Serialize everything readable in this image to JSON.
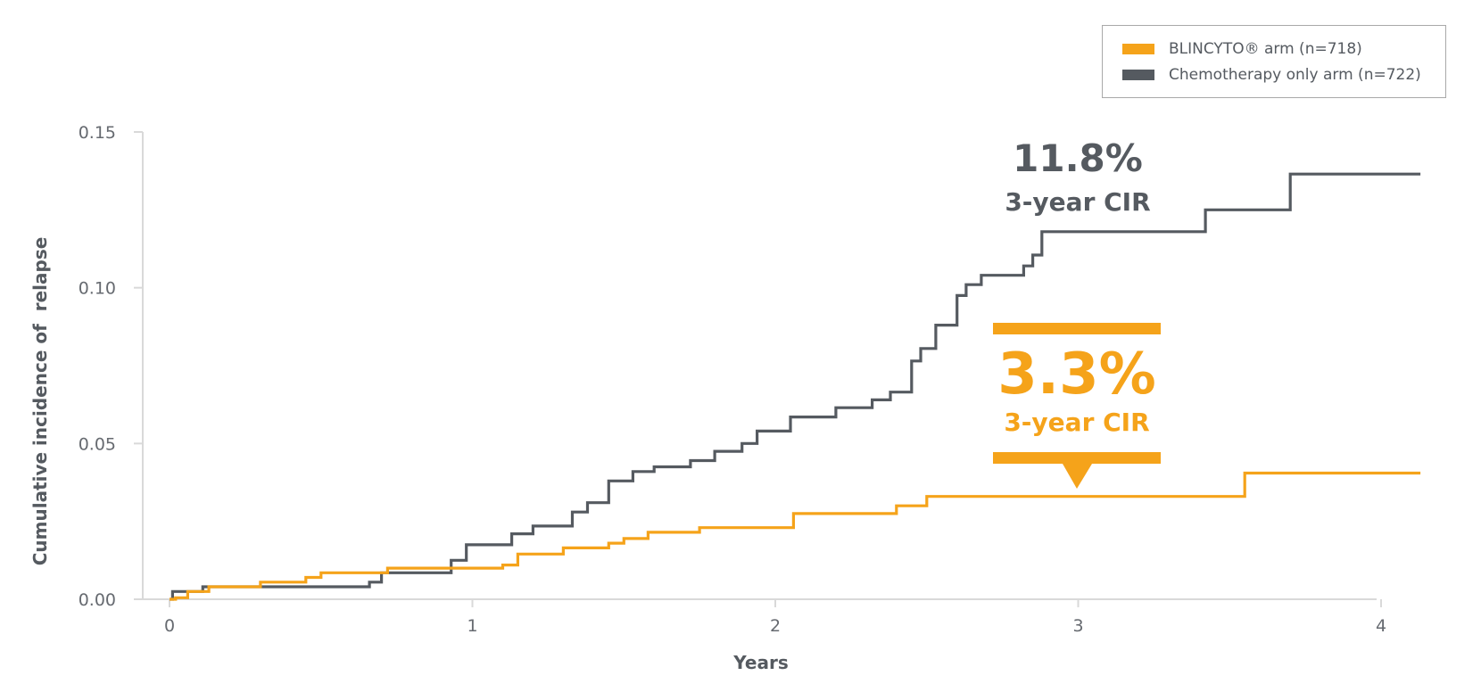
{
  "chart_data": {
    "type": "line",
    "step": true,
    "xlabel": "Years",
    "ylabel": "Cumulative incidence of  relapse",
    "xlim": [
      0,
      4.15
    ],
    "ylim": [
      0,
      0.15
    ],
    "x_ticks": [
      "0",
      "1",
      "2",
      "3",
      "4"
    ],
    "y_ticks": [
      "0.00",
      "0.05",
      "0.10",
      "0.15"
    ],
    "legend": {
      "position": "top-right"
    },
    "series": [
      {
        "name": "BLINCYTO® arm (n=718)",
        "color": "#f5a31a",
        "x": [
          0.0,
          0.02,
          0.06,
          0.13,
          0.3,
          0.45,
          0.5,
          0.72,
          1.1,
          1.15,
          1.3,
          1.45,
          1.5,
          1.58,
          1.75,
          2.06,
          2.4,
          2.5,
          3.0,
          3.55,
          4.13
        ],
        "y": [
          0.0,
          0.0005,
          0.0025,
          0.004,
          0.0055,
          0.007,
          0.0085,
          0.01,
          0.011,
          0.0145,
          0.0165,
          0.018,
          0.0195,
          0.0215,
          0.023,
          0.0275,
          0.03,
          0.033,
          0.033,
          0.0405,
          0.0405
        ]
      },
      {
        "name": "Chemotherapy only arm (n=722)",
        "color": "#555a60",
        "x": [
          0.0,
          0.01,
          0.11,
          0.66,
          0.7,
          0.93,
          0.98,
          1.13,
          1.2,
          1.33,
          1.38,
          1.45,
          1.53,
          1.6,
          1.72,
          1.8,
          1.89,
          1.94,
          2.05,
          2.2,
          2.32,
          2.38,
          2.45,
          2.48,
          2.53,
          2.6,
          2.63,
          2.65,
          2.68,
          2.82,
          2.85,
          2.88,
          3.42,
          3.7,
          4.13
        ],
        "y": [
          0.0,
          0.0025,
          0.004,
          0.0055,
          0.0085,
          0.0125,
          0.0175,
          0.021,
          0.0235,
          0.028,
          0.031,
          0.038,
          0.041,
          0.0425,
          0.0445,
          0.0475,
          0.05,
          0.054,
          0.0585,
          0.0615,
          0.064,
          0.0665,
          0.0765,
          0.0805,
          0.088,
          0.0975,
          0.101,
          0.101,
          0.104,
          0.107,
          0.1105,
          0.118,
          0.125,
          0.1365,
          0.1365
        ]
      }
    ],
    "annotations": [
      {
        "id": "chemo",
        "value": "11.8%",
        "label": "3-year CIR",
        "color": "#555a60"
      },
      {
        "id": "blin",
        "value": "3.3%",
        "label": "3-year CIR",
        "color": "#f5a31a"
      }
    ]
  }
}
